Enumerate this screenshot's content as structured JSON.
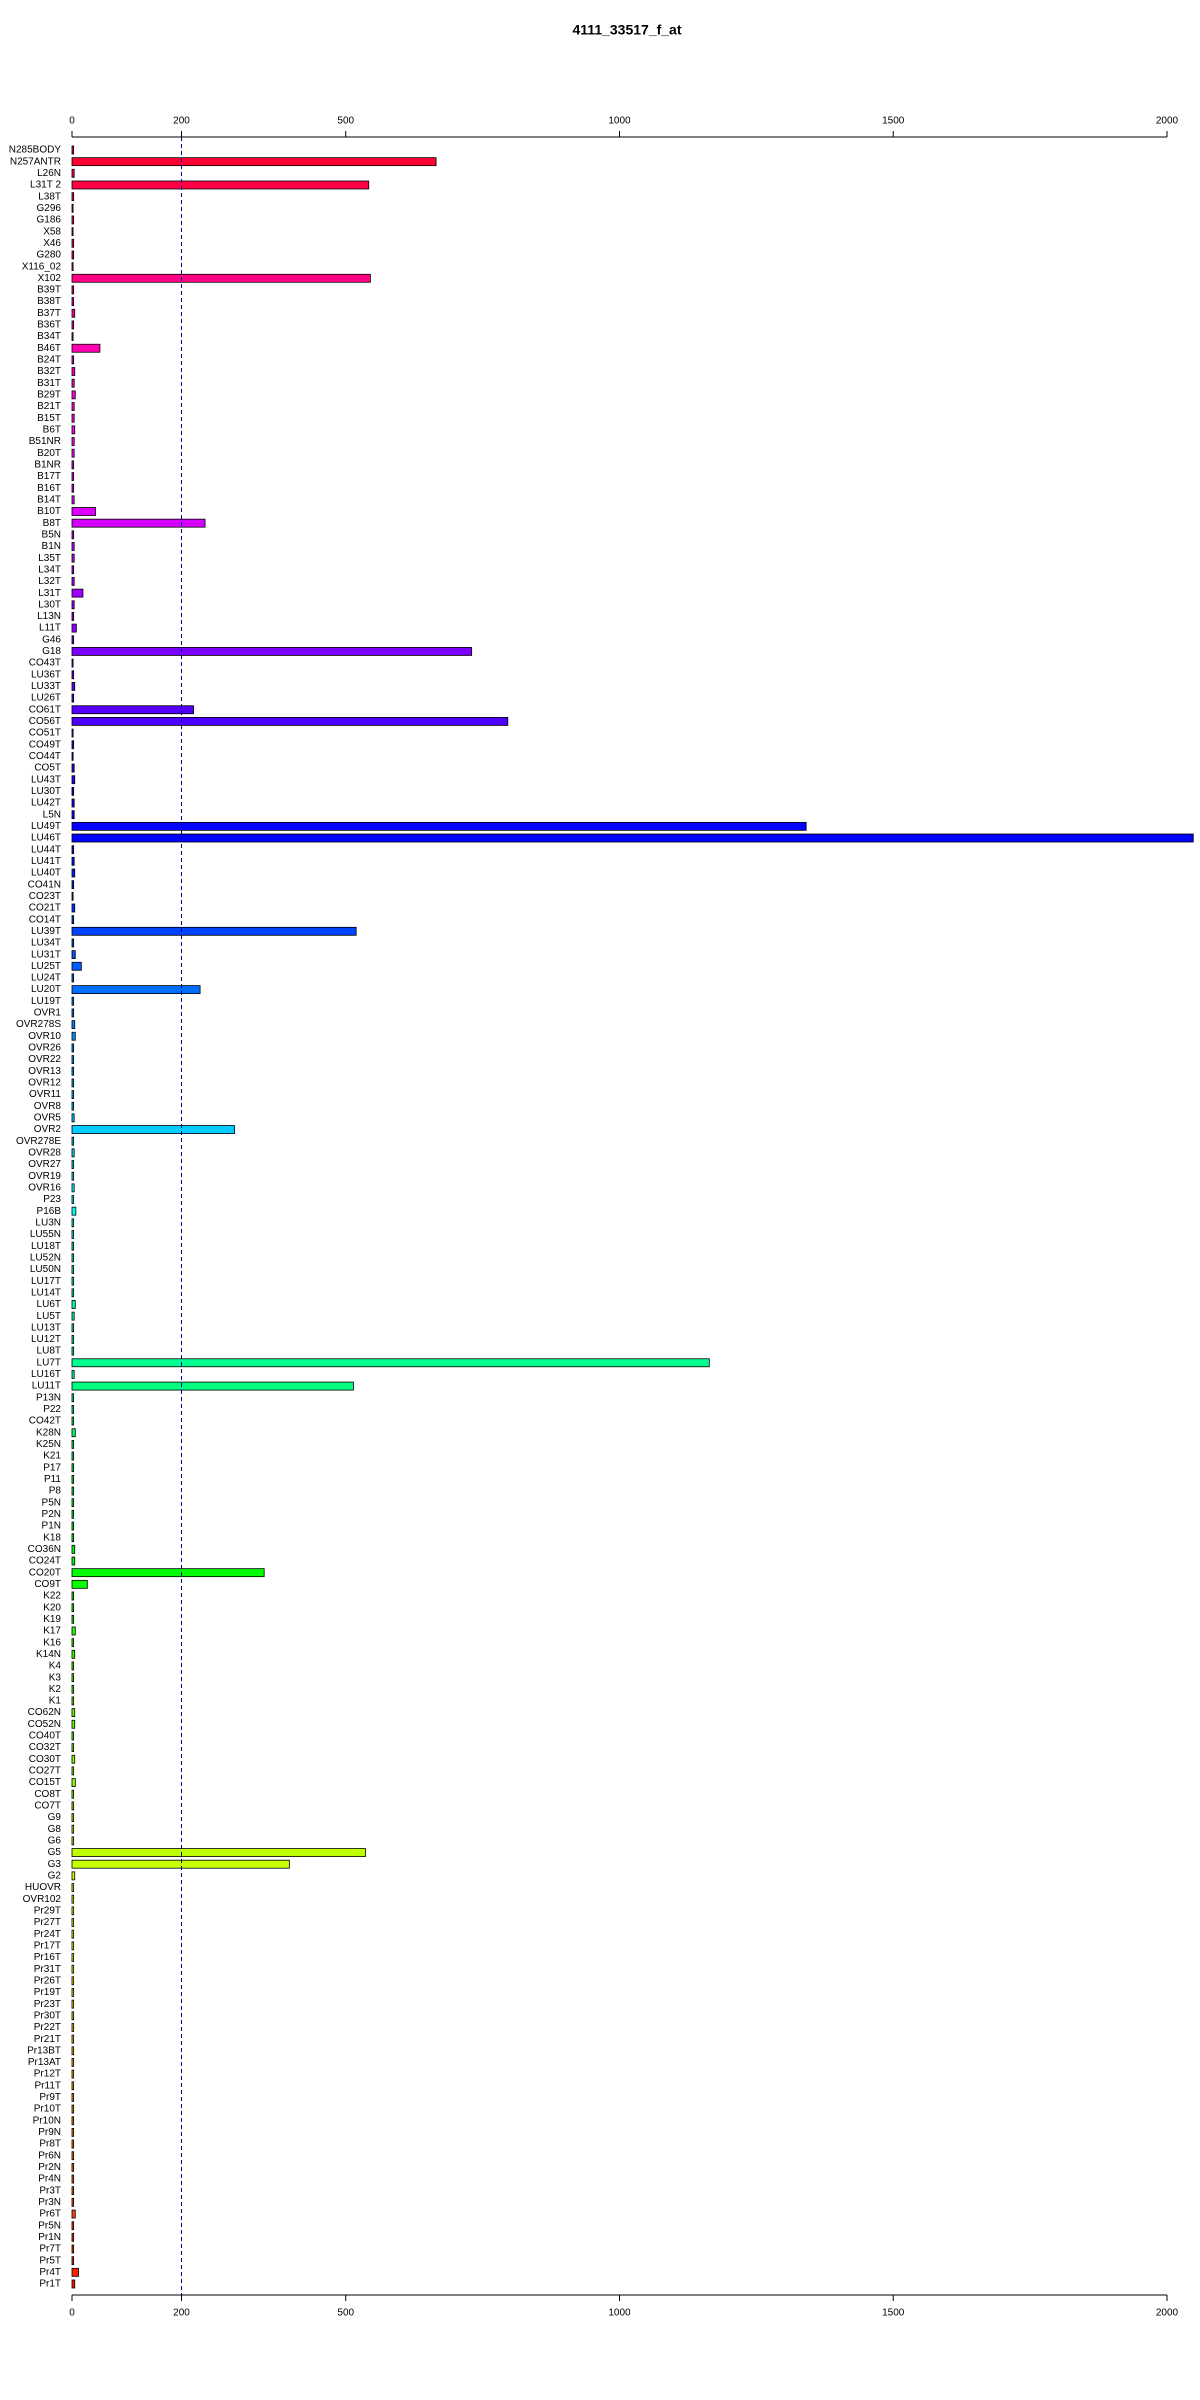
{
  "chart_data": {
    "type": "barh",
    "title": "4111_33517_f_at",
    "categories": [
      "N285BODY",
      "N257ANTR",
      "L26N",
      "L31T 2",
      "L38T",
      "G296",
      "G186",
      "X58",
      "X46",
      "G280",
      "X116_02",
      "X102",
      "B39T",
      "B38T",
      "B37T",
      "B36T",
      "B34T",
      "B46T",
      "B24T",
      "B32T",
      "B31T",
      "B29T",
      "B21T",
      "B15T",
      "B6T",
      "B51NR",
      "B20T",
      "B1NR",
      "B17T",
      "B16T",
      "B14T",
      "B10T",
      "B8T",
      "B5N",
      "B1N",
      "L35T",
      "L34T",
      "L32T",
      "L31T",
      "L30T",
      "L13N",
      "L11T",
      "G46",
      "G18",
      "CO43T",
      "LU36T",
      "LU33T",
      "LU26T",
      "CO61T",
      "CO56T",
      "CO51T",
      "CO49T",
      "CO44T",
      "CO5T",
      "LU43T",
      "LU30T",
      "LU42T",
      "L5N",
      "LU49T",
      "LU46T",
      "LU44T",
      "LU41T",
      "LU40T",
      "CO41N",
      "CO23T",
      "CO21T",
      "CO14T",
      "LU39T",
      "LU34T",
      "LU31T",
      "LU25T",
      "LU24T",
      "LU20T",
      "LU19T",
      "OVR1",
      "OVR278S",
      "OVR10",
      "OVR26",
      "OVR22",
      "OVR13",
      "OVR12",
      "OVR11",
      "OVR8",
      "OVR5",
      "OVR2",
      "OVR278E",
      "OVR28",
      "OVR27",
      "OVR19",
      "OVR16",
      "P23",
      "P16B",
      "LU3N",
      "LU55N",
      "LU18T",
      "LU52N",
      "LU50N",
      "LU17T",
      "LU14T",
      "LU6T",
      "LU5T",
      "LU13T",
      "LU12T",
      "LU8T",
      "LU7T",
      "LU16T",
      "LU11T",
      "P13N",
      "P22",
      "CO42T",
      "K28N",
      "K25N",
      "K21",
      "P17",
      "P11",
      "P8",
      "P5N",
      "P2N",
      "P1N",
      "K18",
      "CO36N",
      "CO24T",
      "CO20T",
      "CO9T",
      "K22",
      "K20",
      "K19",
      "K17",
      "K16",
      "K14N",
      "K4",
      "K3",
      "K2",
      "K1",
      "CO62N",
      "CO52N",
      "CO40T",
      "CO32T",
      "CO30T",
      "CO27T",
      "CO15T",
      "CO8T",
      "CO7T",
      "G9",
      "G8",
      "G6",
      "G5",
      "G3",
      "G2",
      "HUOVR",
      "OVR102",
      "Pr29T",
      "Pr27T",
      "Pr24T",
      "Pr17T",
      "Pr16T",
      "Pr31T",
      "Pr26T",
      "Pr19T",
      "Pr23T",
      "Pr30T",
      "Pr22T",
      "Pr21T",
      "Pr13BT",
      "Pr13AT",
      "Pr12T",
      "Pr11T",
      "Pr9T",
      "Pr10T",
      "Pr10N",
      "Pr9N",
      "Pr8T",
      "Pr6N",
      "Pr2N",
      "Pr4N",
      "Pr3T",
      "Pr3N",
      "Pr6T",
      "Pr5N",
      "Pr1N",
      "Pr7T",
      "Pr5T",
      "Pr4T",
      "Pr1T"
    ],
    "values": [
      3,
      665,
      4,
      542,
      3,
      2,
      3,
      2,
      3,
      3,
      2,
      545,
      3,
      3,
      5,
      3,
      2,
      51,
      3,
      5,
      4,
      6,
      4,
      4,
      5,
      4,
      4,
      3,
      3,
      3,
      4,
      43,
      243,
      3,
      4,
      4,
      3,
      4,
      20,
      4,
      3,
      8,
      3,
      730,
      2,
      3,
      5,
      3,
      222,
      796,
      2,
      3,
      2,
      4,
      5,
      3,
      4,
      4,
      1341,
      2048,
      3,
      4,
      5,
      3,
      2,
      5,
      3,
      519,
      3,
      6,
      17,
      3,
      234,
      3,
      3,
      5,
      6,
      3,
      3,
      3,
      3,
      3,
      3,
      4,
      297,
      3,
      4,
      3,
      3,
      4,
      3,
      7,
      3,
      3,
      3,
      3,
      3,
      3,
      3,
      6,
      4,
      3,
      3,
      3,
      1164,
      4,
      514,
      3,
      3,
      3,
      6,
      3,
      3,
      3,
      3,
      3,
      3,
      3,
      3,
      3,
      5,
      5,
      351,
      28,
      3,
      3,
      3,
      6,
      3,
      5,
      3,
      3,
      3,
      3,
      5,
      5,
      3,
      3,
      5,
      3,
      6,
      3,
      3,
      3,
      3,
      3,
      536,
      397,
      5,
      3,
      3,
      3,
      3,
      3,
      3,
      3,
      3,
      3,
      3,
      3,
      3,
      3,
      3,
      3,
      3,
      3,
      3,
      3,
      3,
      3,
      3,
      3,
      3,
      3,
      3,
      3,
      3,
      6,
      3,
      3,
      3,
      3,
      12,
      5
    ],
    "colors": [
      "hsl(350,100%,50%)",
      "hsl(348,100%,50%)",
      "hsl(346,100%,50%)",
      "hsl(344,100%,50%)",
      "hsl(342,100%,50%)",
      "hsl(341,100%,50%)",
      "hsl(339,100%,50%)",
      "hsl(337,100%,50%)",
      "hsl(335,100%,50%)",
      "hsl(333,100%,50%)",
      "hsl(331,100%,50%)",
      "hsl(329,100%,50%)",
      "hsl(327,100%,50%)",
      "hsl(325,100%,50%)",
      "hsl(324,100%,50%)",
      "hsl(322,100%,50%)",
      "hsl(320,100%,50%)",
      "hsl(318,100%,50%)",
      "hsl(316,100%,50%)",
      "hsl(314,100%,50%)",
      "hsl(312,100%,50%)",
      "hsl(310,100%,50%)",
      "hsl(309,100%,50%)",
      "hsl(307,100%,50%)",
      "hsl(305,100%,50%)",
      "hsl(303,100%,50%)",
      "hsl(301,100%,50%)",
      "hsl(299,100%,50%)",
      "hsl(297,100%,50%)",
      "hsl(295,100%,50%)",
      "hsl(293,100%,50%)",
      "hsl(292,100%,50%)",
      "hsl(290,100%,50%)",
      "hsl(288,100%,50%)",
      "hsl(286,100%,50%)",
      "hsl(284,100%,50%)",
      "hsl(282,100%,50%)",
      "hsl(280,100%,50%)",
      "hsl(278,100%,50%)",
      "hsl(277,100%,50%)",
      "hsl(275,100%,50%)",
      "hsl(273,100%,50%)",
      "hsl(271,100%,50%)",
      "hsl(269,100%,50%)",
      "hsl(267,100%,50%)",
      "hsl(265,100%,50%)",
      "hsl(263,100%,50%)",
      "hsl(261,100%,50%)",
      "hsl(260,100%,50%)",
      "hsl(258,100%,50%)",
      "hsl(256,100%,50%)",
      "hsl(254,100%,50%)",
      "hsl(252,100%,50%)",
      "hsl(250,100%,50%)",
      "hsl(248,100%,50%)",
      "hsl(246,100%,50%)",
      "hsl(244,100%,50%)",
      "hsl(243,100%,50%)",
      "hsl(241,100%,50%)",
      "hsl(239,100%,50%)",
      "hsl(237,100%,50%)",
      "hsl(235,100%,50%)",
      "hsl(233,100%,50%)",
      "hsl(231,100%,50%)",
      "hsl(229,100%,50%)",
      "hsl(227,100%,50%)",
      "hsl(226,100%,50%)",
      "hsl(224,100%,50%)",
      "hsl(222,100%,50%)",
      "hsl(220,100%,50%)",
      "hsl(218,100%,50%)",
      "hsl(216,100%,50%)",
      "hsl(214,100%,50%)",
      "hsl(212,100%,50%)",
      "hsl(211,100%,50%)",
      "hsl(209,100%,50%)",
      "hsl(207,100%,50%)",
      "hsl(205,100%,50%)",
      "hsl(203,100%,50%)",
      "hsl(201,100%,50%)",
      "hsl(199,100%,50%)",
      "hsl(197,100%,50%)",
      "hsl(195,100%,50%)",
      "hsl(194,100%,50%)",
      "hsl(192,100%,50%)",
      "hsl(190,100%,50%)",
      "hsl(188,100%,50%)",
      "hsl(186,100%,50%)",
      "hsl(184,100%,50%)",
      "hsl(182,100%,50%)",
      "hsl(180,100%,50%)",
      "hsl(178,100%,50%)",
      "hsl(177,100%,50%)",
      "hsl(175,100%,50%)",
      "hsl(173,100%,50%)",
      "hsl(171,100%,50%)",
      "hsl(169,100%,50%)",
      "hsl(167,100%,50%)",
      "hsl(165,100%,50%)",
      "hsl(163,100%,50%)",
      "hsl(161,100%,50%)",
      "hsl(160,100%,50%)",
      "hsl(158,100%,50%)",
      "hsl(156,100%,50%)",
      "hsl(154,100%,50%)",
      "hsl(152,100%,50%)",
      "hsl(150,100%,50%)",
      "hsl(148,100%,50%)",
      "hsl(146,100%,50%)",
      "hsl(145,100%,50%)",
      "hsl(143,100%,50%)",
      "hsl(141,100%,50%)",
      "hsl(139,100%,50%)",
      "hsl(137,100%,50%)",
      "hsl(135,100%,50%)",
      "hsl(133,100%,50%)",
      "hsl(131,100%,50%)",
      "hsl(129,100%,50%)",
      "hsl(128,100%,50%)",
      "hsl(126,100%,50%)",
      "hsl(124,100%,50%)",
      "hsl(122,100%,50%)",
      "hsl(120,100%,50%)",
      "hsl(118,100%,50%)",
      "hsl(116,100%,50%)",
      "hsl(114,100%,50%)",
      "hsl(112,100%,50%)",
      "hsl(111,100%,50%)",
      "hsl(109,100%,50%)",
      "hsl(107,100%,50%)",
      "hsl(105,100%,50%)",
      "hsl(103,100%,50%)",
      "hsl(101,100%,50%)",
      "hsl(99,100%,50%)",
      "hsl(97,100%,50%)",
      "hsl(96,100%,50%)",
      "hsl(94,100%,50%)",
      "hsl(92,100%,50%)",
      "hsl(90,100%,50%)",
      "hsl(88,100%,50%)",
      "hsl(86,100%,50%)",
      "hsl(84,100%,50%)",
      "hsl(82,100%,50%)",
      "hsl(80,100%,50%)",
      "hsl(79,100%,50%)",
      "hsl(77,100%,50%)",
      "hsl(75,100%,50%)",
      "hsl(73,100%,50%)",
      "hsl(71,100%,50%)",
      "hsl(69,100%,50%)",
      "hsl(67,100%,50%)",
      "hsl(65,100%,50%)",
      "hsl(63,100%,50%)",
      "hsl(62,100%,50%)",
      "hsl(60,100%,50%)",
      "hsl(58,100%,50%)",
      "hsl(56,100%,50%)",
      "hsl(54,100%,50%)",
      "hsl(52,100%,50%)",
      "hsl(50,100%,50%)",
      "hsl(48,100%,50%)",
      "hsl(46,100%,50%)",
      "hsl(45,100%,50%)",
      "hsl(43,100%,50%)",
      "hsl(41,100%,50%)",
      "hsl(39,100%,50%)",
      "hsl(37,100%,50%)",
      "hsl(35,100%,50%)",
      "hsl(33,100%,50%)",
      "hsl(31,100%,50%)",
      "hsl(29,100%,50%)",
      "hsl(28,100%,50%)",
      "hsl(26,100%,50%)",
      "hsl(24,100%,50%)",
      "hsl(22,100%,50%)",
      "hsl(20,100%,50%)",
      "hsl(18,100%,50%)",
      "hsl(16,100%,50%)",
      "hsl(14,100%,50%)",
      "hsl(12,100%,50%)",
      "hsl(11,100%,50%)",
      "hsl(9,100%,50%)",
      "hsl(7,100%,50%)",
      "hsl(5,100%,50%)"
    ],
    "xlim": [
      0,
      2000
    ],
    "xticks": [
      0,
      200,
      500,
      1000,
      1500,
      2000
    ],
    "reference_line": 200,
    "reference_line_color": "#00008b"
  }
}
